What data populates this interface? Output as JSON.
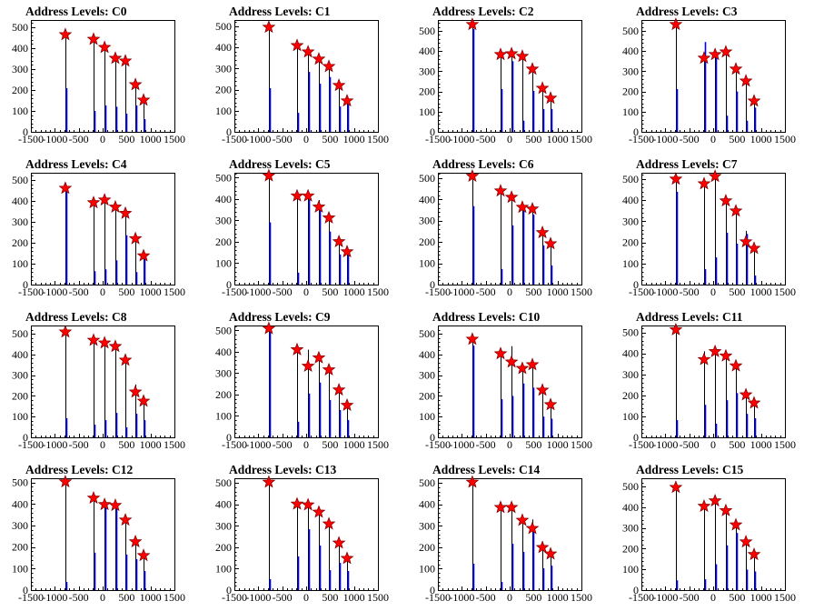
{
  "chart_data": [
    {
      "type": "bar",
      "style": "histogram",
      "grid": false,
      "title": "Address Levels: C0",
      "xlim": [
        -1500,
        1500
      ],
      "ylim": [
        0,
        535
      ],
      "xticks": [
        "-1500",
        "-1000",
        "-500",
        "0",
        "500",
        "1000",
        "1500"
      ],
      "yticks": [
        "0",
        "100",
        "200",
        "300",
        "400",
        "500"
      ],
      "x": [
        -780,
        -190,
        40,
        265,
        475,
        685,
        855
      ],
      "series": [
        {
          "color": "#000000",
          "values": [
            480,
            450,
            410,
            360,
            345,
            232,
            158
          ]
        },
        {
          "color": "#0000ff",
          "values": [
            209,
            100,
            126,
            120,
            87,
            126,
            61
          ]
        },
        {
          "color": "#ff0000",
          "marker": "star",
          "values": [
            465,
            443,
            404,
            352,
            339,
            226,
            152
          ]
        }
      ]
    },
    {
      "type": "bar",
      "style": "histogram",
      "grid": false,
      "title": "Address Levels: C1",
      "xlim": [
        -1500,
        1500
      ],
      "ylim": [
        0,
        530
      ],
      "xticks": [
        "-1500",
        "-1000",
        "-500",
        "0",
        "500",
        "1000",
        "1500"
      ],
      "yticks": [
        "0",
        "100",
        "200",
        "300",
        "400",
        "500"
      ],
      "x": [
        -780,
        -190,
        40,
        265,
        475,
        685,
        855
      ],
      "series": [
        {
          "color": "#000000",
          "values": [
            505,
            415,
            388,
            352,
            318,
            226,
            152
          ]
        },
        {
          "color": "#0000ff",
          "values": [
            207,
            90,
            284,
            228,
            260,
            120,
            130
          ]
        },
        {
          "color": "#ff0000",
          "marker": "star",
          "values": [
            496,
            409,
            379,
            345,
            310,
            220,
            147
          ]
        }
      ]
    },
    {
      "type": "bar",
      "style": "histogram",
      "grid": false,
      "title": "Address Levels: C2",
      "xlim": [
        -1500,
        1500
      ],
      "ylim": [
        0,
        554
      ],
      "xticks": [
        "-1500",
        "-1000",
        "-500",
        "0",
        "500",
        "1000",
        "1500"
      ],
      "yticks": [
        "0",
        "100",
        "200",
        "300",
        "400",
        "500"
      ],
      "x": [
        -780,
        -190,
        40,
        265,
        475,
        685,
        855
      ],
      "series": [
        {
          "color": "#000000",
          "values": [
            540,
            390,
            395,
            380,
            318,
            222,
            172
          ]
        },
        {
          "color": "#0000ff",
          "values": [
            509,
            212,
            350,
            55,
            203,
            113,
            113
          ]
        },
        {
          "color": "#ff0000",
          "marker": "star",
          "values": [
            532,
            383,
            387,
            374,
            311,
            216,
            167
          ]
        }
      ]
    },
    {
      "type": "bar",
      "style": "histogram",
      "grid": false,
      "title": "Address Levels: C3",
      "xlim": [
        -1500,
        1500
      ],
      "ylim": [
        0,
        554
      ],
      "xticks": [
        "-1500",
        "-1000",
        "-500",
        "0",
        "500",
        "1000",
        "1500"
      ],
      "yticks": [
        "0",
        "100",
        "200",
        "300",
        "400",
        "500"
      ],
      "x": [
        -780,
        -190,
        40,
        265,
        475,
        685,
        855
      ],
      "series": [
        {
          "color": "#000000",
          "values": [
            540,
            372,
            390,
            402,
            318,
            258,
            158
          ]
        },
        {
          "color": "#0000ff",
          "values": [
            212,
            445,
            380,
            80,
            200,
            55,
            120
          ]
        },
        {
          "color": "#ff0000",
          "marker": "star",
          "values": [
            532,
            365,
            383,
            396,
            311,
            252,
            153
          ]
        }
      ]
    },
    {
      "type": "bar",
      "style": "histogram",
      "grid": false,
      "title": "Address Levels: C4",
      "xlim": [
        -1500,
        1500
      ],
      "ylim": [
        0,
        535
      ],
      "xticks": [
        "-1500",
        "-1000",
        "-500",
        "0",
        "500",
        "1000",
        "1500"
      ],
      "yticks": [
        "0",
        "100",
        "200",
        "300",
        "400",
        "500"
      ],
      "x": [
        -780,
        -190,
        40,
        265,
        475,
        685,
        855
      ],
      "series": [
        {
          "color": "#000000",
          "values": [
            470,
            398,
            412,
            378,
            348,
            226,
            144
          ]
        },
        {
          "color": "#0000ff",
          "values": [
            470,
            64,
            73,
            116,
            236,
            60,
            138
          ]
        },
        {
          "color": "#ff0000",
          "marker": "star",
          "values": [
            461,
            392,
            405,
            371,
            341,
            220,
            138
          ]
        }
      ]
    },
    {
      "type": "bar",
      "style": "histogram",
      "grid": false,
      "title": "Address Levels: C5",
      "xlim": [
        -1500,
        1500
      ],
      "ylim": [
        0,
        523
      ],
      "xticks": [
        "-1500",
        "-1000",
        "-500",
        "0",
        "500",
        "1000",
        "1500"
      ],
      "yticks": [
        "0",
        "100",
        "200",
        "300",
        "400",
        "500"
      ],
      "x": [
        -780,
        -190,
        40,
        265,
        475,
        685,
        855
      ],
      "series": [
        {
          "color": "#000000",
          "values": [
            515,
            422,
            420,
            395,
            318,
            208,
            160
          ]
        },
        {
          "color": "#0000ff",
          "values": [
            291,
            56,
            397,
            355,
            248,
            141,
            150
          ]
        },
        {
          "color": "#ff0000",
          "marker": "star",
          "values": [
            509,
            415,
            415,
            363,
            312,
            201,
            154
          ]
        }
      ]
    },
    {
      "type": "bar",
      "style": "histogram",
      "grid": false,
      "title": "Address Levels: C6",
      "xlim": [
        -1500,
        1500
      ],
      "ylim": [
        0,
        525
      ],
      "xticks": [
        "-1500",
        "-1000",
        "-500",
        "0",
        "500",
        "1000",
        "1500"
      ],
      "yticks": [
        "0",
        "100",
        "200",
        "300",
        "400",
        "500"
      ],
      "x": [
        -780,
        -190,
        40,
        265,
        475,
        685,
        855
      ],
      "series": [
        {
          "color": "#000000",
          "values": [
            515,
            446,
            416,
            370,
            362,
            250,
            198
          ]
        },
        {
          "color": "#0000ff",
          "values": [
            368,
            73,
            278,
            355,
            329,
            184,
            90
          ]
        },
        {
          "color": "#ff0000",
          "marker": "star",
          "values": [
            509,
            440,
            410,
            363,
            355,
            244,
            192
          ]
        }
      ]
    },
    {
      "type": "bar",
      "style": "histogram",
      "grid": false,
      "title": "Address Levels: C7",
      "xlim": [
        -1500,
        1500
      ],
      "ylim": [
        0,
        530
      ],
      "xticks": [
        "-1500",
        "-1000",
        "-500",
        "0",
        "500",
        "1000",
        "1500"
      ],
      "yticks": [
        "0",
        "100",
        "200",
        "300",
        "400",
        "500"
      ],
      "x": [
        -780,
        -190,
        40,
        265,
        475,
        685,
        855
      ],
      "series": [
        {
          "color": "#000000",
          "values": [
            506,
            485,
            520,
            404,
            355,
            255,
            178
          ]
        },
        {
          "color": "#0000ff",
          "values": [
            440,
            73,
            129,
            246,
            194,
            240,
            43
          ]
        },
        {
          "color": "#ff0000",
          "marker": "star",
          "values": [
            500,
            478,
            513,
            397,
            349,
            203,
            172
          ]
        }
      ]
    },
    {
      "type": "bar",
      "style": "histogram",
      "grid": false,
      "title": "Address Levels: C8",
      "xlim": [
        -1500,
        1500
      ],
      "ylim": [
        0,
        540
      ],
      "xticks": [
        "-1500",
        "-1000",
        "-500",
        "0",
        "500",
        "1000",
        "1500"
      ],
      "yticks": [
        "0",
        "100",
        "200",
        "300",
        "400",
        "500"
      ],
      "x": [
        -780,
        -190,
        40,
        265,
        475,
        685,
        855
      ],
      "series": [
        {
          "color": "#000000",
          "values": [
            515,
            475,
            462,
            445,
            380,
            255,
            180
          ]
        },
        {
          "color": "#0000ff",
          "values": [
            92,
            61,
            83,
            118,
            48,
            114,
            83
          ]
        },
        {
          "color": "#ff0000",
          "marker": "star",
          "values": [
            509,
            469,
            456,
            439,
            373,
            219,
            175
          ]
        }
      ]
    },
    {
      "type": "bar",
      "style": "histogram",
      "grid": false,
      "title": "Address Levels: C9",
      "xlim": [
        -1500,
        1500
      ],
      "ylim": [
        0,
        523
      ],
      "xticks": [
        "-1500",
        "-1000",
        "-500",
        "0",
        "500",
        "1000",
        "1500"
      ],
      "yticks": [
        "0",
        "100",
        "200",
        "300",
        "400",
        "500"
      ],
      "x": [
        -780,
        -190,
        40,
        265,
        475,
        685,
        855
      ],
      "series": [
        {
          "color": "#000000",
          "values": [
            515,
            416,
            410,
            378,
            322,
            228,
            156
          ]
        },
        {
          "color": "#0000ff",
          "values": [
            500,
            73,
            205,
            256,
            175,
            128,
            81
          ]
        },
        {
          "color": "#ff0000",
          "marker": "star",
          "values": [
            509,
            410,
            333,
            372,
            316,
            222,
            150
          ]
        }
      ]
    },
    {
      "type": "bar",
      "style": "histogram",
      "grid": false,
      "title": "Address Levels: C10",
      "xlim": [
        -1500,
        1500
      ],
      "ylim": [
        0,
        540
      ],
      "xticks": [
        "-1500",
        "-1000",
        "-500",
        "0",
        "500",
        "1000",
        "1500"
      ],
      "yticks": [
        "0",
        "100",
        "200",
        "300",
        "400",
        "500"
      ],
      "x": [
        -780,
        -190,
        40,
        265,
        475,
        685,
        855
      ],
      "series": [
        {
          "color": "#000000",
          "values": [
            480,
            410,
            440,
            340,
            358,
            234,
            164
          ]
        },
        {
          "color": "#0000ff",
          "values": [
            443,
            184,
            200,
            260,
            240,
            100,
            90
          ]
        },
        {
          "color": "#ff0000",
          "marker": "star",
          "values": [
            474,
            404,
            364,
            333,
            351,
            228,
            158
          ]
        }
      ]
    },
    {
      "type": "bar",
      "style": "histogram",
      "grid": false,
      "title": "Address Levels: C11",
      "xlim": [
        -1500,
        1500
      ],
      "ylim": [
        0,
        533
      ],
      "xticks": [
        "-1500",
        "-1000",
        "-500",
        "0",
        "500",
        "1000",
        "1500"
      ],
      "yticks": [
        "0",
        "100",
        "200",
        "300",
        "400",
        "500"
      ],
      "x": [
        -780,
        -190,
        40,
        265,
        475,
        685,
        855
      ],
      "series": [
        {
          "color": "#000000",
          "values": [
            520,
            410,
            415,
            394,
            348,
            210,
            170
          ]
        },
        {
          "color": "#0000ff",
          "values": [
            82,
            155,
            65,
            177,
            211,
            112,
            91
          ]
        },
        {
          "color": "#ff0000",
          "marker": "star",
          "values": [
            513,
            371,
            409,
            388,
            341,
            203,
            164
          ]
        }
      ]
    },
    {
      "type": "bar",
      "style": "histogram",
      "grid": false,
      "title": "Address Levels: C12",
      "xlim": [
        -1500,
        1500
      ],
      "ylim": [
        0,
        520
      ],
      "xticks": [
        "-1500",
        "-1000",
        "-500",
        "0",
        "500",
        "1000",
        "1500"
      ],
      "yticks": [
        "0",
        "100",
        "200",
        "300",
        "400",
        "500"
      ],
      "x": [
        -780,
        -190,
        40,
        265,
        475,
        685,
        855
      ],
      "series": [
        {
          "color": "#000000",
          "values": [
            510,
            434,
            404,
            400,
            332,
            232,
            166
          ]
        },
        {
          "color": "#0000ff",
          "values": [
            38,
            174,
            407,
            377,
            165,
            144,
            89
          ]
        },
        {
          "color": "#ff0000",
          "marker": "star",
          "values": [
            504,
            428,
            398,
            394,
            326,
            225,
            161
          ]
        }
      ]
    },
    {
      "type": "bar",
      "style": "histogram",
      "grid": false,
      "title": "Address Levels: C13",
      "xlim": [
        -1500,
        1500
      ],
      "ylim": [
        0,
        522
      ],
      "xticks": [
        "-1500",
        "-1000",
        "-500",
        "0",
        "500",
        "1000",
        "1500"
      ],
      "yticks": [
        "0",
        "100",
        "200",
        "300",
        "400",
        "500"
      ],
      "x": [
        -780,
        -190,
        40,
        265,
        475,
        685,
        855
      ],
      "series": [
        {
          "color": "#000000",
          "values": [
            510,
            408,
            404,
            370,
            315,
            226,
            154
          ]
        },
        {
          "color": "#0000ff",
          "values": [
            51,
            157,
            284,
            208,
            93,
            127,
            89
          ]
        },
        {
          "color": "#ff0000",
          "marker": "star",
          "values": [
            504,
            402,
            398,
            364,
            309,
            220,
            148
          ]
        }
      ]
    },
    {
      "type": "bar",
      "style": "histogram",
      "grid": false,
      "title": "Address Levels: C14",
      "xlim": [
        -1500,
        1500
      ],
      "ylim": [
        0,
        522
      ],
      "xticks": [
        "-1500",
        "-1000",
        "-500",
        "0",
        "500",
        "1000",
        "1500"
      ],
      "yticks": [
        "0",
        "100",
        "200",
        "300",
        "400",
        "500"
      ],
      "x": [
        -780,
        -190,
        40,
        265,
        475,
        685,
        855
      ],
      "series": [
        {
          "color": "#000000",
          "values": [
            510,
            410,
            392,
            332,
            330,
            205,
            175
          ]
        },
        {
          "color": "#0000ff",
          "values": [
            123,
            38,
            216,
            178,
            284,
            102,
            114
          ]
        },
        {
          "color": "#ff0000",
          "marker": "star",
          "values": [
            504,
            386,
            386,
            326,
            288,
            199,
            169
          ]
        }
      ]
    },
    {
      "type": "bar",
      "style": "histogram",
      "grid": false,
      "title": "Address Levels: C15",
      "xlim": [
        -1500,
        1500
      ],
      "ylim": [
        0,
        540
      ],
      "xticks": [
        "-1500",
        "-1000",
        "-500",
        "0",
        "500",
        "1000",
        "1500"
      ],
      "yticks": [
        "0",
        "100",
        "200",
        "300",
        "400",
        "500"
      ],
      "x": [
        -780,
        -190,
        40,
        265,
        475,
        685,
        855
      ],
      "series": [
        {
          "color": "#000000",
          "values": [
            502,
            412,
            438,
            390,
            322,
            240,
            178
          ]
        },
        {
          "color": "#0000ff",
          "values": [
            47,
            52,
            125,
            216,
            276,
            99,
            90
          ]
        },
        {
          "color": "#ff0000",
          "marker": "star",
          "values": [
            496,
            405,
            431,
            384,
            315,
            233,
            172
          ]
        }
      ]
    }
  ]
}
